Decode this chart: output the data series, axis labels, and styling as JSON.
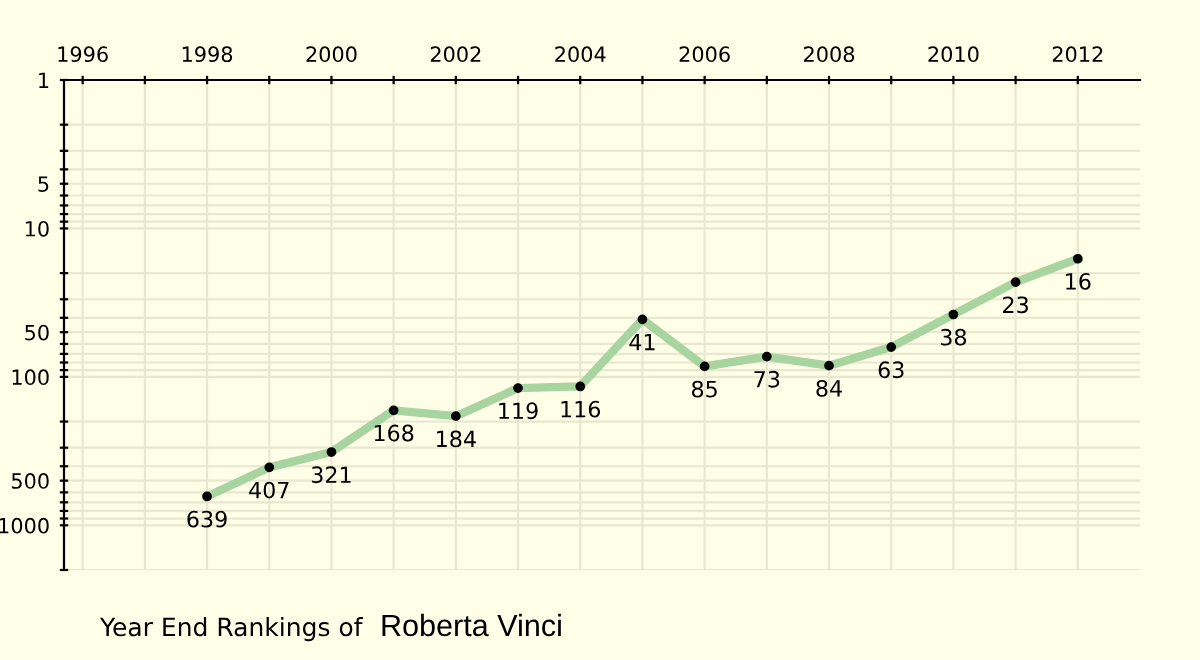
{
  "chart_data": {
    "type": "line",
    "title": "Year End Rankings of",
    "subtitle": "Roberta Vinci",
    "x": [
      1998,
      1999,
      2000,
      2001,
      2002,
      2003,
      2004,
      2005,
      2006,
      2007,
      2008,
      2009,
      2010,
      2011,
      2012
    ],
    "series": [
      {
        "color": "#a8d4a0",
        "values": [
          639,
          407,
          321,
          168,
          184,
          119,
          116,
          41,
          85,
          73,
          84,
          63,
          38,
          23,
          16
        ]
      }
    ],
    "data_labels": true,
    "marker": "circle",
    "log": "y",
    "grid": true,
    "xlim": [
      1995.7,
      2013
    ],
    "xticks": [
      1996,
      {
        "value": 1997,
        "label": null
      },
      1998,
      {
        "value": 1999,
        "label": null
      },
      2000,
      {
        "value": 2001,
        "label": null
      },
      2002,
      {
        "value": 2003,
        "label": null
      },
      2004,
      {
        "value": 2005,
        "label": null
      },
      2006,
      {
        "value": 2007,
        "label": null
      },
      2008,
      {
        "value": 2009,
        "label": null
      },
      2010,
      {
        "value": 2011,
        "label": null
      },
      2012
    ],
    "ylim": [
      2000,
      1
    ],
    "yticks": [
      1,
      {
        "value": 2,
        "label": null
      },
      {
        "value": 3,
        "label": null
      },
      {
        "value": 4,
        "label": null
      },
      5,
      {
        "value": 6,
        "label": null
      },
      {
        "value": 7,
        "label": null
      },
      {
        "value": 8,
        "label": null
      },
      {
        "value": 9,
        "label": null
      },
      10,
      {
        "value": 20,
        "label": null
      },
      {
        "value": 30,
        "label": null
      },
      {
        "value": 40,
        "label": null
      },
      50,
      {
        "value": 60,
        "label": null
      },
      {
        "value": 70,
        "label": null
      },
      {
        "value": 80,
        "label": null
      },
      {
        "value": 90,
        "label": null
      },
      100,
      {
        "value": 200,
        "label": null
      },
      {
        "value": 300,
        "label": null
      },
      {
        "value": 400,
        "label": null
      },
      500,
      {
        "value": 600,
        "label": null
      },
      {
        "value": 700,
        "label": null
      },
      {
        "value": 800,
        "label": null
      },
      {
        "value": 900,
        "label": null
      },
      1000,
      {
        "value": 2000,
        "label": null
      }
    ]
  }
}
